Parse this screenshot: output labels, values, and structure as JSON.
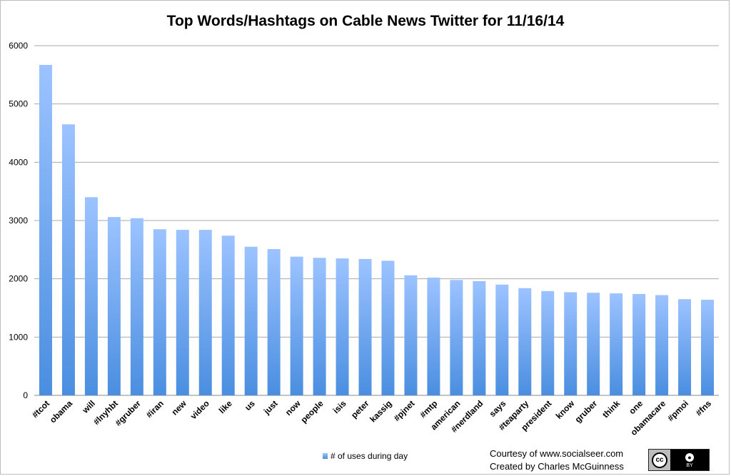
{
  "chart_data": {
    "type": "bar",
    "title": "Top Words/Hashtags on Cable News Twitter for 11/16/14",
    "categories": [
      "#tcot",
      "obama",
      "will",
      "#lnyhbt",
      "#gruber",
      "#iran",
      "new",
      "video",
      "like",
      "us",
      "just",
      "now",
      "people",
      "isis",
      "peter",
      "kassig",
      "#pjnet",
      "#mtp",
      "american",
      "#nerdland",
      "says",
      "#teaparty",
      "president",
      "know",
      "gruber",
      "think",
      "one",
      "obamacare",
      "#pmoi",
      "#fns"
    ],
    "series": [
      {
        "name": "# of uses during day",
        "values": [
          5670,
          4650,
          3400,
          3060,
          3040,
          2850,
          2840,
          2840,
          2740,
          2550,
          2510,
          2380,
          2360,
          2350,
          2340,
          2310,
          2060,
          2020,
          1980,
          1960,
          1900,
          1840,
          1790,
          1770,
          1760,
          1750,
          1740,
          1720,
          1650,
          1640
        ]
      }
    ],
    "ylim": [
      0,
      6000
    ],
    "yticks": [
      0,
      1000,
      2000,
      3000,
      4000,
      5000,
      6000
    ],
    "grid": true,
    "legend_position": "bottom",
    "bar_color_top": "#9cc3ff",
    "bar_color_bottom": "#4a8ee0",
    "grid_color": "#a8a8a8"
  },
  "credits": {
    "line1": "Courtesy of www.socialseer.com",
    "line2": "Created by Charles McGuinness"
  },
  "license_badge": {
    "icon": "creative-commons-by-icon",
    "cc_text": "cc",
    "by_text": "BY"
  }
}
